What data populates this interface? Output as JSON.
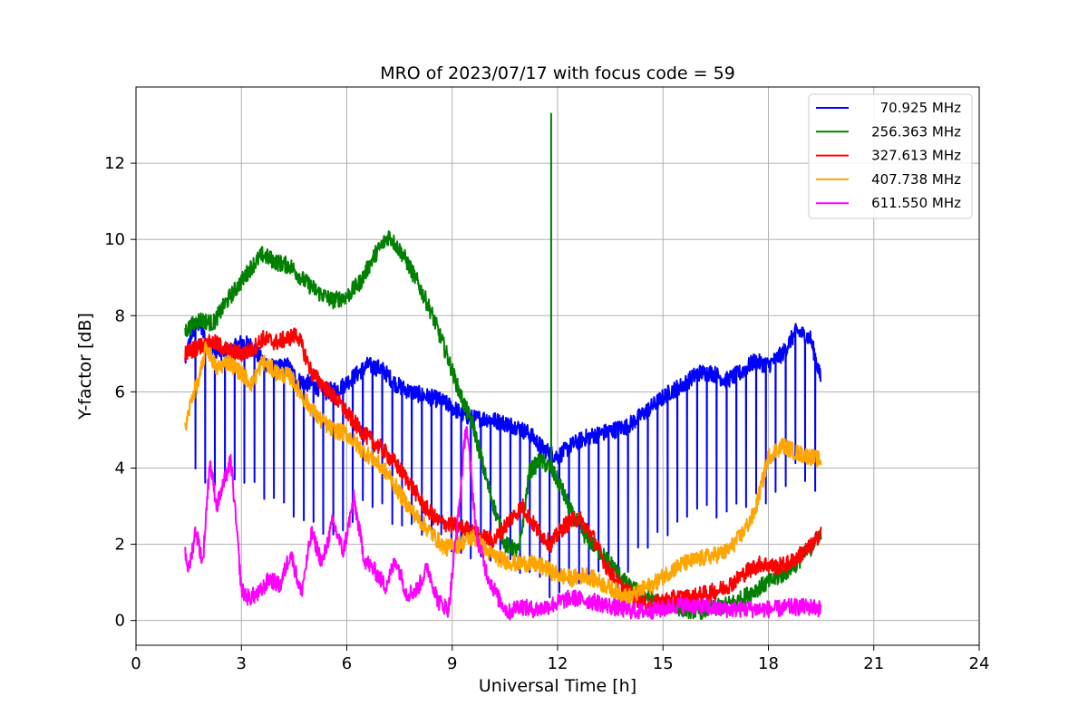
{
  "chart_data": {
    "type": "line",
    "title": "MRO of 2023/07/17 with focus code = 59",
    "xlabel": "Universal Time [h]",
    "ylabel": "Y-factor [dB]",
    "xlim": [
      0,
      24
    ],
    "ylim": [
      -0.65,
      14
    ],
    "xticks": [
      0,
      3,
      6,
      9,
      12,
      15,
      18,
      21,
      24
    ],
    "xtick_labels": [
      "0",
      "3",
      "6",
      "9",
      "12",
      "15",
      "18",
      "21",
      "24"
    ],
    "yticks": [
      0,
      2,
      4,
      6,
      8,
      10,
      12
    ],
    "ytick_labels": [
      "0",
      "2",
      "4",
      "6",
      "8",
      "10",
      "12"
    ],
    "grid": true,
    "legend_position": "top-right",
    "series": [
      {
        "name": "70.925 MHz",
        "color": "#0000ff",
        "x": [
          1.4,
          1.6,
          1.8,
          2.0,
          2.3,
          2.6,
          3.0,
          3.3,
          3.6,
          4.0,
          4.3,
          4.6,
          5.0,
          5.4,
          5.8,
          6.2,
          6.6,
          7.0,
          7.4,
          7.8,
          8.2,
          8.6,
          9.0,
          9.3,
          9.6,
          10.0,
          10.4,
          10.8,
          11.2,
          11.6,
          12.0,
          12.4,
          12.8,
          13.2,
          13.6,
          14.0,
          14.4,
          14.8,
          15.2,
          15.6,
          16.0,
          16.4,
          16.8,
          17.2,
          17.6,
          18.0,
          18.4,
          18.8,
          19.2,
          19.5
        ],
        "y": [
          6.8,
          7.6,
          7.8,
          7.3,
          7.1,
          7.0,
          7.3,
          7.2,
          6.8,
          6.6,
          6.7,
          6.3,
          6.2,
          6.0,
          6.1,
          6.4,
          6.7,
          6.6,
          6.2,
          6.0,
          5.9,
          5.8,
          5.6,
          5.4,
          5.3,
          5.3,
          5.2,
          5.1,
          4.9,
          4.5,
          4.3,
          4.6,
          4.8,
          4.9,
          5.0,
          5.1,
          5.4,
          5.7,
          6.0,
          6.2,
          6.5,
          6.5,
          6.3,
          6.5,
          6.8,
          6.7,
          7.0,
          7.6,
          7.4,
          6.3
        ],
        "dropout_every": 0.28,
        "dropout_depth": 3.6
      },
      {
        "name": "256.363 MHz",
        "color": "#008000",
        "x": [
          1.4,
          1.8,
          2.2,
          2.6,
          3.0,
          3.3,
          3.6,
          4.0,
          4.4,
          4.8,
          5.2,
          5.6,
          6.0,
          6.4,
          6.8,
          7.2,
          7.6,
          8.0,
          8.4,
          8.8,
          9.2,
          9.6,
          10.0,
          10.5,
          10.9,
          11.2,
          11.5,
          11.8,
          12.1,
          12.4,
          12.8,
          13.2,
          13.6,
          14.0,
          14.4,
          14.8,
          15.2,
          15.6,
          16.0,
          16.4,
          16.8,
          17.2,
          17.6,
          18.0,
          18.4,
          18.8,
          19.2,
          19.5
        ],
        "y": [
          7.6,
          7.9,
          7.8,
          8.4,
          8.9,
          9.3,
          9.6,
          9.4,
          9.3,
          8.9,
          8.6,
          8.4,
          8.5,
          8.9,
          9.6,
          10.1,
          9.6,
          8.9,
          8.1,
          7.1,
          6.0,
          5.1,
          3.6,
          2.0,
          1.8,
          3.9,
          4.2,
          4.0,
          3.5,
          2.8,
          2.2,
          1.8,
          1.4,
          0.9,
          0.7,
          0.5,
          0.4,
          0.3,
          0.25,
          0.3,
          0.4,
          0.55,
          0.8,
          1.0,
          1.2,
          1.5,
          1.9,
          2.3
        ],
        "spike_x": 11.82,
        "spike_y": 13.3
      },
      {
        "name": "327.613 MHz",
        "color": "#ff0000",
        "x": [
          1.4,
          1.8,
          2.2,
          2.6,
          3.0,
          3.3,
          3.6,
          4.0,
          4.3,
          4.6,
          5.0,
          5.4,
          5.8,
          6.2,
          6.6,
          7.0,
          7.4,
          7.8,
          8.2,
          8.6,
          9.0,
          9.4,
          9.8,
          10.2,
          10.6,
          11.0,
          11.4,
          11.8,
          12.2,
          12.6,
          13.0,
          13.4,
          13.8,
          14.2,
          14.6,
          15.0,
          15.4,
          15.8,
          16.2,
          16.6,
          17.0,
          17.4,
          17.8,
          18.2,
          18.6,
          19.0,
          19.3,
          19.5
        ],
        "y": [
          7.0,
          7.2,
          7.3,
          7.1,
          7.0,
          7.1,
          7.4,
          7.3,
          7.4,
          7.5,
          6.5,
          6.1,
          5.7,
          5.2,
          4.8,
          4.5,
          4.1,
          3.6,
          3.0,
          2.6,
          2.5,
          2.4,
          2.2,
          2.1,
          2.6,
          3.0,
          2.4,
          2.0,
          2.5,
          2.7,
          2.2,
          1.4,
          0.9,
          0.6,
          0.4,
          0.5,
          0.6,
          0.6,
          0.7,
          0.8,
          1.0,
          1.3,
          1.5,
          1.4,
          1.5,
          1.8,
          2.0,
          2.4
        ]
      },
      {
        "name": "407.738 MHz",
        "color": "#ffa500",
        "x": [
          1.4,
          1.6,
          1.8,
          2.0,
          2.3,
          2.6,
          3.0,
          3.3,
          3.6,
          4.0,
          4.4,
          4.8,
          5.2,
          5.6,
          6.0,
          6.4,
          6.8,
          7.2,
          7.6,
          8.0,
          8.4,
          8.8,
          9.2,
          9.6,
          10.0,
          10.4,
          10.8,
          11.2,
          11.6,
          12.0,
          12.4,
          12.8,
          13.2,
          13.6,
          14.0,
          14.4,
          14.8,
          15.2,
          15.6,
          16.0,
          16.4,
          16.8,
          17.2,
          17.6,
          18.0,
          18.4,
          18.8,
          19.2,
          19.5
        ],
        "y": [
          5.0,
          5.9,
          6.3,
          7.2,
          6.6,
          6.8,
          6.5,
          6.2,
          6.8,
          6.5,
          6.4,
          5.8,
          5.3,
          5.0,
          4.9,
          4.5,
          4.2,
          3.8,
          3.2,
          2.7,
          2.3,
          1.9,
          2.0,
          2.2,
          1.8,
          1.6,
          1.5,
          1.5,
          1.4,
          1.2,
          1.1,
          1.2,
          1.0,
          0.8,
          0.6,
          0.8,
          1.0,
          1.3,
          1.5,
          1.6,
          1.7,
          1.8,
          2.2,
          2.8,
          4.3,
          4.6,
          4.4,
          4.3,
          4.2
        ]
      },
      {
        "name": "611.550 MHz",
        "color": "#ff00ff",
        "x": [
          1.4,
          1.5,
          1.7,
          1.9,
          2.1,
          2.3,
          2.5,
          2.7,
          2.9,
          3.0,
          3.2,
          3.5,
          3.8,
          4.1,
          4.4,
          4.7,
          5.0,
          5.3,
          5.6,
          5.9,
          6.2,
          6.5,
          6.8,
          7.1,
          7.4,
          7.7,
          8.0,
          8.3,
          8.6,
          8.9,
          9.2,
          9.4,
          9.7,
          10.0,
          10.3,
          10.6,
          10.9,
          11.2,
          11.5,
          11.8,
          12.1,
          12.4,
          12.7,
          13.0,
          13.4,
          13.8,
          14.2,
          14.6,
          15.0,
          15.4,
          15.8,
          16.2,
          16.6,
          17.0,
          17.4,
          17.8,
          18.2,
          18.6,
          19.0,
          19.3,
          19.5
        ],
        "y": [
          1.8,
          1.3,
          2.4,
          1.5,
          4.2,
          3.0,
          3.6,
          4.2,
          2.0,
          0.8,
          0.6,
          0.7,
          1.1,
          0.9,
          1.8,
          0.7,
          2.3,
          1.5,
          2.6,
          1.8,
          3.2,
          1.6,
          1.3,
          0.9,
          1.6,
          0.7,
          0.8,
          1.4,
          0.5,
          0.3,
          3.0,
          5.2,
          2.2,
          1.2,
          0.6,
          0.2,
          0.4,
          0.3,
          0.3,
          0.4,
          0.5,
          0.6,
          0.55,
          0.5,
          0.4,
          0.3,
          0.25,
          0.25,
          0.3,
          0.4,
          0.4,
          0.35,
          0.3,
          0.3,
          0.3,
          0.3,
          0.3,
          0.35,
          0.35,
          0.35,
          0.3
        ]
      }
    ]
  }
}
